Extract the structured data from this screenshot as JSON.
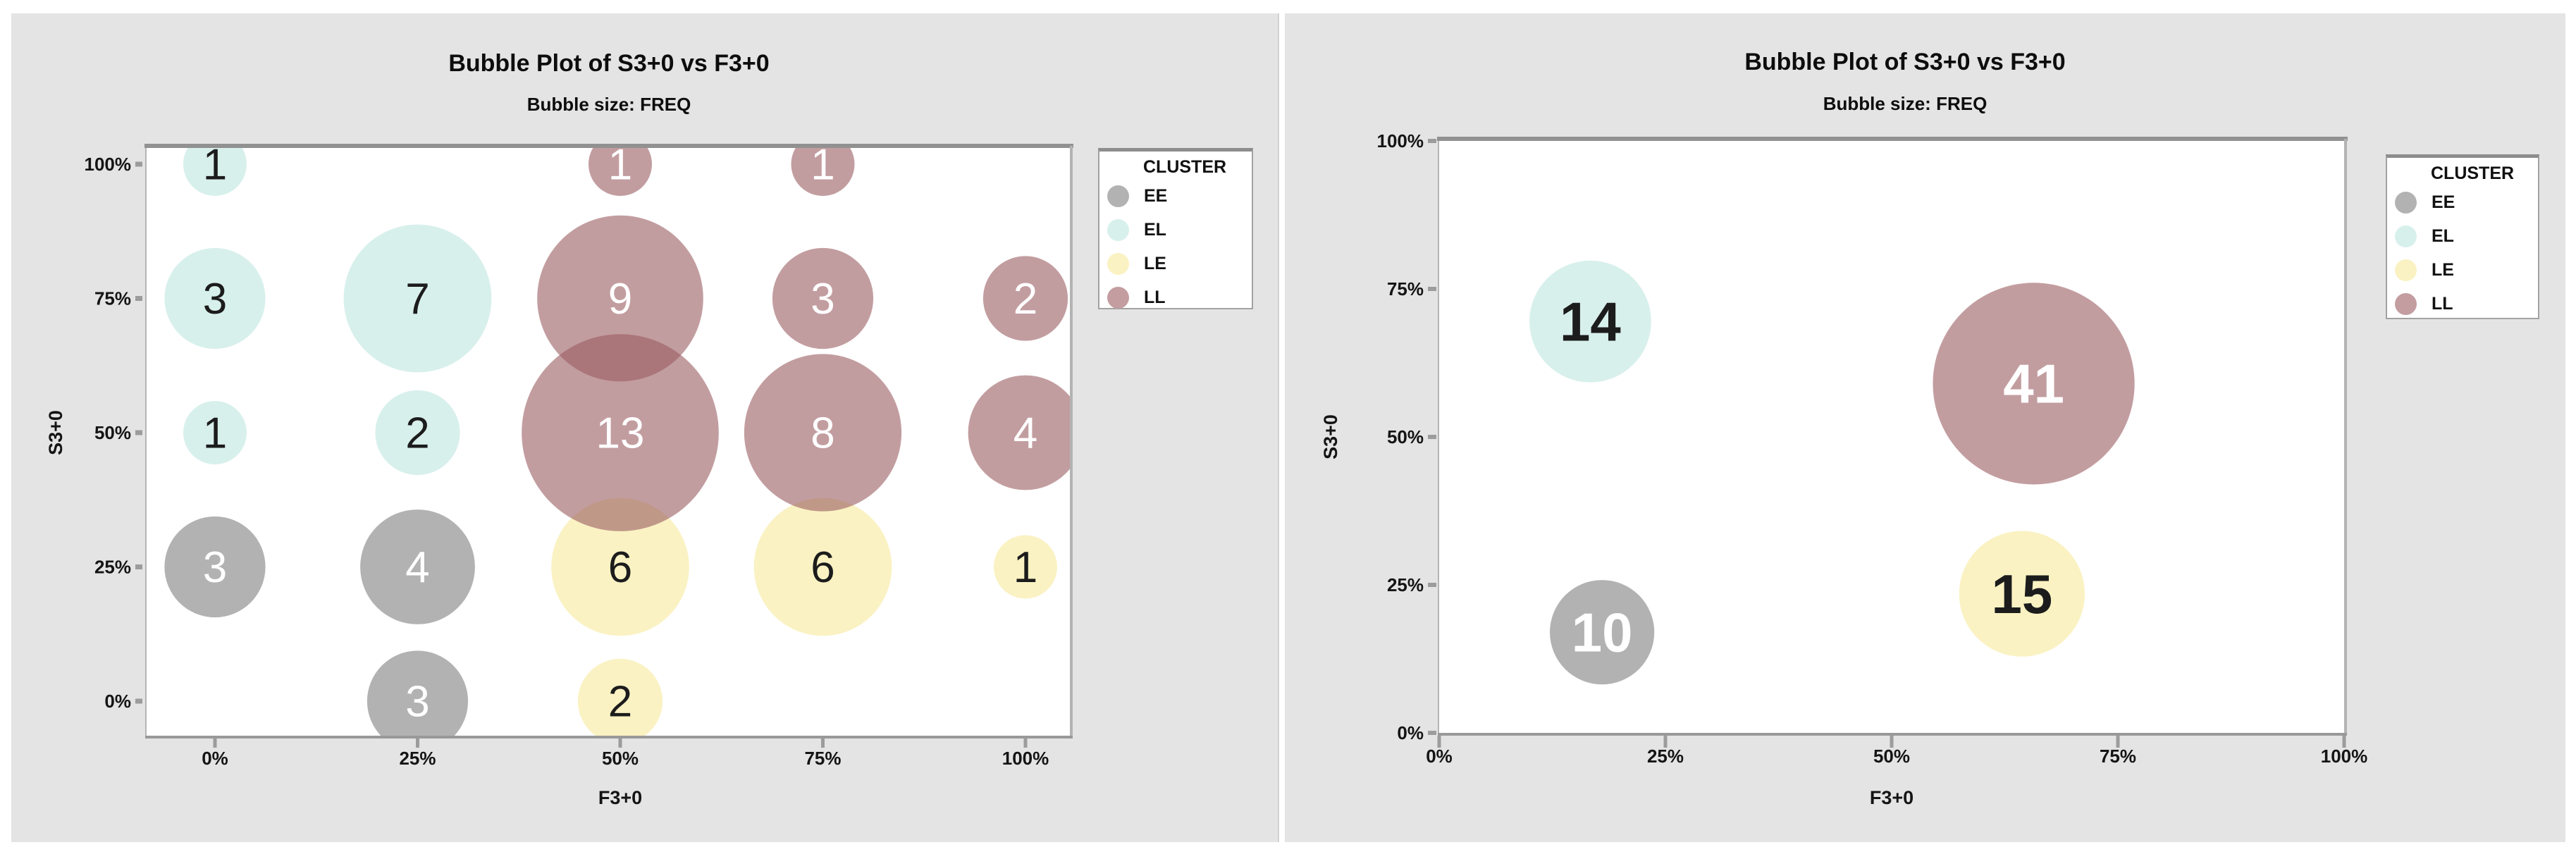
{
  "page": {
    "background": "#ffffff",
    "panel_background": "#e4e4e4"
  },
  "chart_data": [
    {
      "type": "bubble",
      "title": "Bubble Plot of S3+0 vs F3+0",
      "subtitle": "Bubble size: FREQ",
      "xlabel": "F3+0",
      "ylabel": "S3+0",
      "size_field": "FREQ",
      "xlim": [
        0,
        100
      ],
      "ylim": [
        0,
        100
      ],
      "x_ticks": [
        "0%",
        "25%",
        "50%",
        "75%",
        "100%"
      ],
      "y_ticks": [
        "0%",
        "25%",
        "50%",
        "75%",
        "100%"
      ],
      "grid": "off",
      "legend": {
        "title": "CLUSTER",
        "position": "right",
        "items": [
          {
            "label": "EE",
            "color": "#b2b2b2"
          },
          {
            "label": "EL",
            "color": "#d8f0ec"
          },
          {
            "label": "LE",
            "color": "#faf2c3"
          },
          {
            "label": "LL",
            "color": "#c39da0"
          }
        ]
      },
      "series": [
        {
          "name": "EE",
          "base_color": "#7f7f7f",
          "label_color": "#ffffff",
          "points": [
            {
              "x": 0,
              "y": 25,
              "freq": 3
            },
            {
              "x": 25,
              "y": 25,
              "freq": 4
            },
            {
              "x": 25,
              "y": 0,
              "freq": 3
            }
          ]
        },
        {
          "name": "EL",
          "base_color": "#bee6df",
          "label_color": "#1c1c1c",
          "points": [
            {
              "x": 0,
              "y": 100,
              "freq": 1
            },
            {
              "x": 0,
              "y": 75,
              "freq": 3
            },
            {
              "x": 25,
              "y": 75,
              "freq": 7
            },
            {
              "x": 0,
              "y": 50,
              "freq": 1
            },
            {
              "x": 25,
              "y": 50,
              "freq": 2
            }
          ]
        },
        {
          "name": "LE",
          "base_color": "#f6e99b",
          "label_color": "#1c1c1c",
          "points": [
            {
              "x": 50,
              "y": 25,
              "freq": 6
            },
            {
              "x": 75,
              "y": 25,
              "freq": 6
            },
            {
              "x": 100,
              "y": 25,
              "freq": 1
            },
            {
              "x": 50,
              "y": 0,
              "freq": 2
            }
          ]
        },
        {
          "name": "LL",
          "base_color": "#995c61",
          "label_color": "#ffffff",
          "points": [
            {
              "x": 50,
              "y": 100,
              "freq": 1
            },
            {
              "x": 75,
              "y": 100,
              "freq": 1
            },
            {
              "x": 50,
              "y": 75,
              "freq": 9
            },
            {
              "x": 75,
              "y": 75,
              "freq": 3
            },
            {
              "x": 100,
              "y": 75,
              "freq": 2
            },
            {
              "x": 50,
              "y": 50,
              "freq": 13
            },
            {
              "x": 75,
              "y": 50,
              "freq": 8
            },
            {
              "x": 100,
              "y": 50,
              "freq": 4
            }
          ]
        }
      ]
    },
    {
      "type": "bubble",
      "title": "Bubble Plot of S3+0 vs F3+0",
      "subtitle": "Bubble size: FREQ",
      "xlabel": "F3+0",
      "ylabel": "S3+0",
      "size_field": "FREQ",
      "xlim": [
        0,
        100
      ],
      "ylim": [
        0,
        100
      ],
      "x_ticks": [
        "0%",
        "25%",
        "50%",
        "75%",
        "100%"
      ],
      "y_ticks": [
        "0%",
        "25%",
        "50%",
        "75%",
        "100%"
      ],
      "grid": "off",
      "legend": {
        "title": "CLUSTER",
        "position": "right",
        "items": [
          {
            "label": "EE",
            "color": "#b2b2b2"
          },
          {
            "label": "EL",
            "color": "#d8f0ec"
          },
          {
            "label": "LE",
            "color": "#faf2c3"
          },
          {
            "label": "LL",
            "color": "#c39da0"
          }
        ]
      },
      "series": [
        {
          "name": "EE",
          "base_color": "#7f7f7f",
          "label_color": "#ffffff",
          "points": [
            {
              "x": 18,
              "y": 17,
              "freq": 10
            }
          ]
        },
        {
          "name": "EL",
          "base_color": "#bee6df",
          "label_color": "#1c1c1c",
          "points": [
            {
              "x": 16.7,
              "y": 69.5,
              "freq": 14
            }
          ]
        },
        {
          "name": "LE",
          "base_color": "#f6e99b",
          "label_color": "#1c1c1c",
          "points": [
            {
              "x": 64.4,
              "y": 23.5,
              "freq": 15
            }
          ]
        },
        {
          "name": "LL",
          "base_color": "#995c61",
          "label_color": "#ffffff",
          "points": [
            {
              "x": 65.7,
              "y": 59,
              "freq": 41
            }
          ]
        }
      ]
    }
  ]
}
